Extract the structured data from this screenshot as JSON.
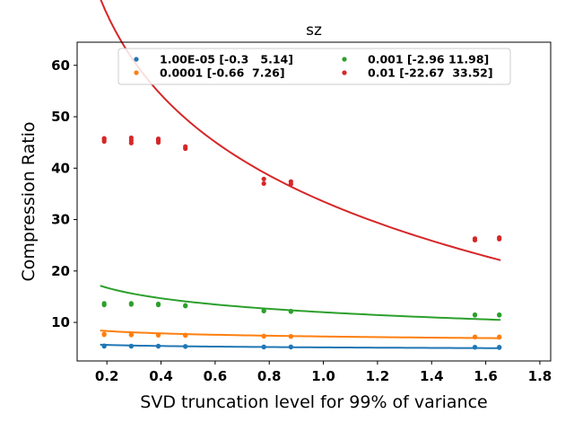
{
  "chart_data": {
    "type": "scatter",
    "title": "sz",
    "xlabel": "SVD truncation level for 99% of variance",
    "ylabel": "Compression Ratio",
    "xlim": [
      0.09,
      1.84
    ],
    "ylim": [
      2.5,
      64.5
    ],
    "xticks": [
      0.2,
      0.4,
      0.6,
      0.8,
      1.0,
      1.2,
      1.4,
      1.6,
      1.8
    ],
    "xtick_labels": [
      "0.2",
      "0.4",
      "0.6",
      "0.8",
      "1.0",
      "1.2",
      "1.4",
      "1.6",
      "1.8"
    ],
    "yticks": [
      10,
      20,
      30,
      40,
      50,
      60
    ],
    "ytick_labels": [
      "10",
      "20",
      "30",
      "40",
      "50",
      "60"
    ],
    "grid": false,
    "legend_position": "top",
    "legend_columns": 2,
    "series": [
      {
        "name": "1.00E-05 [-0.3   5.14]",
        "color": "#1f77b4",
        "points": [
          [
            0.19,
            5.35
          ],
          [
            0.19,
            5.45
          ],
          [
            0.29,
            5.35
          ],
          [
            0.29,
            5.4
          ],
          [
            0.39,
            5.35
          ],
          [
            0.39,
            5.4
          ],
          [
            0.49,
            5.3
          ],
          [
            0.49,
            5.35
          ],
          [
            0.78,
            5.2
          ],
          [
            0.78,
            5.25
          ],
          [
            0.88,
            5.2
          ],
          [
            0.88,
            5.25
          ],
          [
            1.56,
            5.15
          ],
          [
            1.56,
            5.2
          ],
          [
            1.65,
            5.1
          ],
          [
            1.65,
            5.2
          ]
        ],
        "fit": {
          "a": -0.3,
          "b": 5.14
        }
      },
      {
        "name": "0.0001 [-0.66  7.26]",
        "color": "#ff7f0e",
        "points": [
          [
            0.19,
            7.6
          ],
          [
            0.19,
            7.75
          ],
          [
            0.29,
            7.55
          ],
          [
            0.29,
            7.7
          ],
          [
            0.39,
            7.5
          ],
          [
            0.39,
            7.6
          ],
          [
            0.49,
            7.45
          ],
          [
            0.49,
            7.55
          ],
          [
            0.78,
            7.3
          ],
          [
            0.78,
            7.35
          ],
          [
            0.88,
            7.25
          ],
          [
            0.88,
            7.3
          ],
          [
            1.56,
            7.15
          ],
          [
            1.56,
            7.2
          ],
          [
            1.65,
            7.1
          ],
          [
            1.65,
            7.2
          ]
        ],
        "fit": {
          "a": -0.66,
          "b": 7.26
        }
      },
      {
        "name": "0.001 [-2.96 11.98]",
        "color": "#2ca02c",
        "points": [
          [
            0.19,
            13.4
          ],
          [
            0.19,
            13.7
          ],
          [
            0.29,
            13.5
          ],
          [
            0.29,
            13.7
          ],
          [
            0.39,
            13.4
          ],
          [
            0.39,
            13.6
          ],
          [
            0.49,
            13.2
          ],
          [
            0.49,
            13.3
          ],
          [
            0.78,
            12.2
          ],
          [
            0.78,
            12.3
          ],
          [
            0.88,
            12.1
          ],
          [
            0.88,
            12.2
          ],
          [
            1.56,
            11.4
          ],
          [
            1.56,
            11.5
          ],
          [
            1.65,
            11.4
          ],
          [
            1.65,
            11.5
          ]
        ],
        "fit": {
          "a": -2.96,
          "b": 11.98
        }
      },
      {
        "name": "0.01 [-22.67  33.52]",
        "color": "#d62728",
        "points": [
          [
            0.19,
            45.2
          ],
          [
            0.19,
            45.6
          ],
          [
            0.19,
            45.8
          ],
          [
            0.29,
            44.9
          ],
          [
            0.29,
            45.4
          ],
          [
            0.29,
            45.9
          ],
          [
            0.39,
            45.0
          ],
          [
            0.39,
            45.4
          ],
          [
            0.39,
            45.7
          ],
          [
            0.49,
            43.8
          ],
          [
            0.49,
            44.2
          ],
          [
            0.78,
            37.0
          ],
          [
            0.78,
            37.9
          ],
          [
            0.88,
            36.9
          ],
          [
            0.88,
            37.4
          ],
          [
            1.56,
            26.0
          ],
          [
            1.56,
            26.3
          ],
          [
            1.65,
            26.2
          ],
          [
            1.65,
            26.5
          ]
        ],
        "fit": {
          "a": -22.67,
          "b": 33.52
        }
      }
    ]
  }
}
